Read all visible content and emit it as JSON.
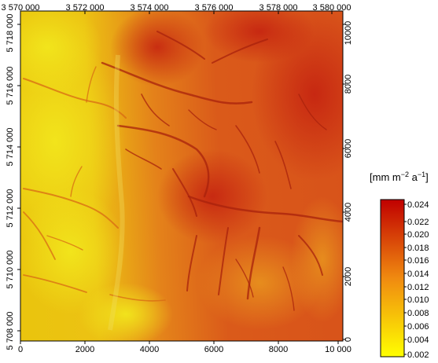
{
  "map": {
    "top_axis_labels": [
      "3 570 000",
      "3 572 000",
      "3 574 000",
      "3 576 000",
      "3 578 000",
      "3 580 000"
    ],
    "bottom_axis_labels": [
      "0",
      "2000",
      "4000",
      "6000",
      "8000",
      "10 000"
    ],
    "left_axis_labels": [
      "5 708 000",
      "5 710 000",
      "5 712 000",
      "5 714 000",
      "5 716 000",
      "5 718 000"
    ],
    "right_axis_labels": [
      "0",
      "2000",
      "4000",
      "6000",
      "8000",
      "10000"
    ]
  },
  "legend": {
    "units_prefix": "[mm m",
    "units_sup1": "−2",
    "units_mid": " a",
    "units_sup2": "−1",
    "units_suffix": "]",
    "tick_labels": [
      "0.024",
      "0.022",
      "0.020",
      "0.018",
      "0.016",
      "0.014",
      "0.012",
      "0.010",
      "0.008",
      "0.006",
      "0.004",
      "0.002"
    ],
    "color_low": "#ffff00",
    "color_mid": "#f08a10",
    "color_high": "#c00000"
  }
}
